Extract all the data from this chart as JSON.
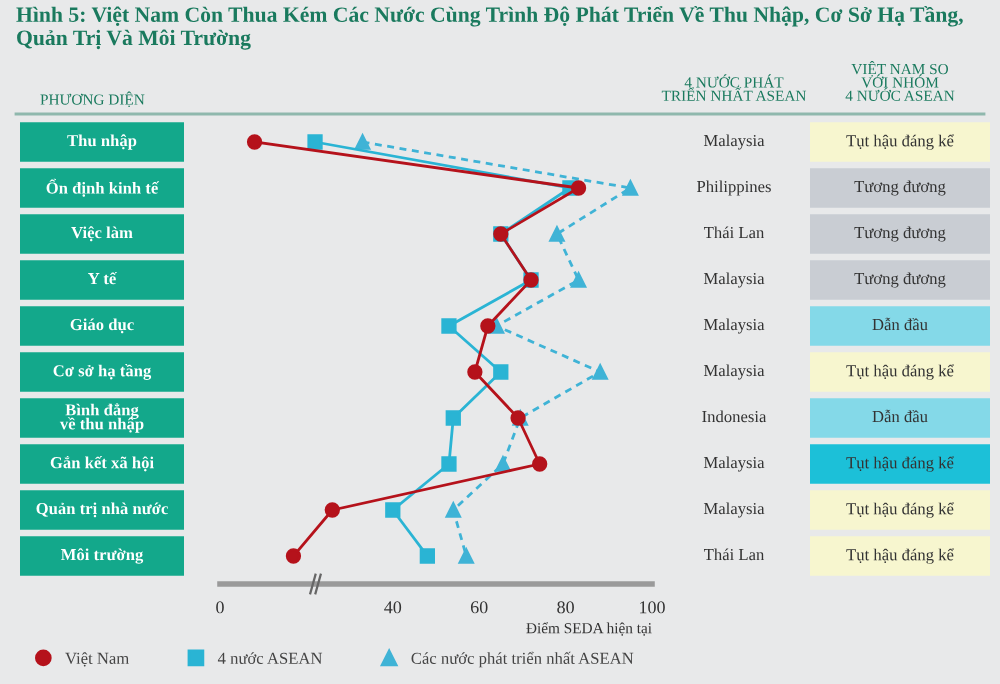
{
  "chart_data": [
    {
      "type": "line",
      "title": "Hình 5: Việt Nam Còn Thua Kém Các Nước Cùng Trình Độ Phát Triển Về Thu Nhập, Cơ Sở Hạ Tầng,\nQuản Trị Và Môi Trường",
      "xlabel": "Điểm SEDA hiện tại",
      "ylabel": "PHƯƠNG DIỆN",
      "orientation": "horizontal",
      "categories": [
        "Thu nhập",
        "Ổn định kinh tế",
        "Việc làm",
        "Y tế",
        "Giáo dục",
        "Cơ sở hạ tầng",
        "Bình đẳng\nvề thu nhập",
        "Gắn kết xã hội",
        "Quản trị nhà nước",
        "Môi trường"
      ],
      "xlim": [
        0,
        100
      ],
      "xticks": [
        0,
        40,
        60,
        80,
        100
      ],
      "legend": "bottom left",
      "series": [
        {
          "name": "Việt Nam",
          "color": "#b5121b",
          "marker": "circle",
          "line_style": "solid",
          "values": [
            8,
            83,
            65,
            72,
            62,
            59,
            69,
            74,
            26,
            17
          ]
        },
        {
          "name": "4 nước ASEAN",
          "color": "#2ab4d4",
          "marker": "square",
          "line_style": "solid",
          "values": [
            22,
            81,
            65,
            72,
            53,
            65,
            54,
            53,
            40,
            48
          ]
        },
        {
          "name": "Các nước phát triển nhất ASEAN",
          "color": "#3fb3d6",
          "marker": "triangle",
          "line_style": "dashed",
          "values": [
            33,
            95,
            78,
            83,
            64,
            88,
            69.5,
            65.5,
            54,
            57
          ]
        }
      ]
    },
    {
      "type": "other",
      "annotations": [
        "4 NƯỚC PHÁT\nTRIỂN NHẤT ASEAN",
        "VIỆT NAM SO\nVỚI NHÓM\n4 NƯỚC ASEAN",
        "Malaysia",
        "Philippines",
        "Thái Lan",
        "Malaysia",
        "Malaysia",
        "Malaysia",
        "Indonesia",
        "Malaysia",
        "Malaysia",
        "Thái Lan",
        "Tụt hậu đáng kể",
        "Tương đương",
        "Tương đương",
        "Tương đương",
        "Dẫn đầu",
        "Tụt hậu đáng kể",
        "Dẫn đầu",
        "Tụt hậu đáng kể",
        "Tụt hậu đáng kể",
        "Tụt hậu đáng kể"
      ],
      "colors": [
        "#f7f6cf",
        "#c9cdd3",
        "#c9cdd3",
        "#c9cdd3",
        "#84d9e8",
        "#f7f6cf",
        "#84d9e8",
        "#1cc0d8",
        "#f7f6cf",
        "#f7f6cf"
      ]
    }
  ]
}
